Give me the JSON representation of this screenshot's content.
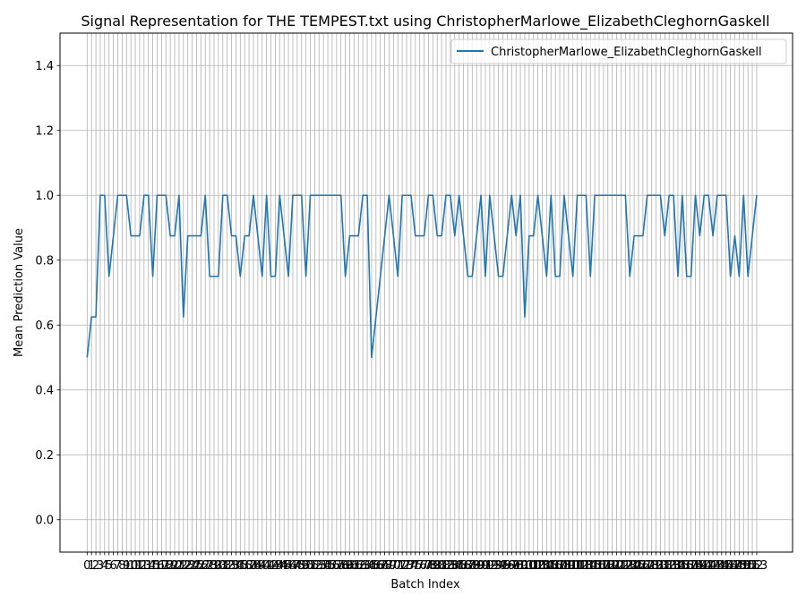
{
  "chart_data": {
    "type": "line",
    "title": "Signal Representation for THE TEMPEST.txt using ChristopherMarlowe_ElizabethCleghornGaskell",
    "xlabel": "Batch Index",
    "ylabel": "Mean Prediction Value",
    "xlim": [
      -6.2,
      161.2
    ],
    "ylim": [
      -0.1,
      1.5
    ],
    "yticks": [
      0.0,
      0.2,
      0.4,
      0.6,
      0.8,
      1.0,
      1.2,
      1.4
    ],
    "grid": true,
    "legend_position": "top-right",
    "series": [
      {
        "name": "ChristopherMarlowe_ElizabethCleghornGaskell",
        "color": "#1f77b4",
        "x_start": 0,
        "values": [
          0.5,
          0.625,
          0.625,
          1.0,
          1.0,
          0.75,
          0.875,
          1.0,
          1.0,
          1.0,
          0.875,
          0.875,
          0.875,
          1.0,
          1.0,
          0.75,
          1.0,
          1.0,
          1.0,
          0.875,
          0.875,
          1.0,
          0.625,
          0.875,
          0.875,
          0.875,
          0.875,
          1.0,
          0.75,
          0.75,
          0.75,
          1.0,
          1.0,
          0.875,
          0.875,
          0.75,
          0.875,
          0.875,
          1.0,
          0.875,
          0.75,
          1.0,
          0.75,
          0.75,
          1.0,
          0.875,
          0.75,
          1.0,
          1.0,
          1.0,
          0.75,
          1.0,
          1.0,
          1.0,
          1.0,
          1.0,
          1.0,
          1.0,
          1.0,
          0.75,
          0.875,
          0.875,
          0.875,
          1.0,
          1.0,
          0.5,
          0.625,
          0.75,
          0.875,
          1.0,
          0.875,
          0.75,
          1.0,
          1.0,
          1.0,
          0.875,
          0.875,
          0.875,
          1.0,
          1.0,
          0.875,
          0.875,
          1.0,
          1.0,
          0.875,
          1.0,
          0.875,
          0.75,
          0.75,
          0.875,
          1.0,
          0.75,
          1.0,
          0.875,
          0.75,
          0.75,
          0.875,
          1.0,
          0.875,
          1.0,
          0.625,
          0.875,
          0.875,
          1.0,
          0.875,
          0.75,
          1.0,
          0.75,
          0.75,
          1.0,
          0.875,
          0.75,
          1.0,
          1.0,
          1.0,
          0.75,
          1.0,
          1.0,
          1.0,
          1.0,
          1.0,
          1.0,
          1.0,
          1.0,
          0.75,
          0.875,
          0.875,
          0.875,
          1.0,
          1.0,
          1.0,
          1.0,
          0.875,
          1.0,
          1.0,
          0.75,
          1.0,
          0.75,
          0.75,
          1.0,
          0.875,
          1.0,
          1.0,
          0.875,
          1.0,
          1.0,
          1.0,
          0.75,
          0.875,
          0.75,
          1.0,
          0.75,
          0.875,
          1.0
        ]
      }
    ]
  }
}
